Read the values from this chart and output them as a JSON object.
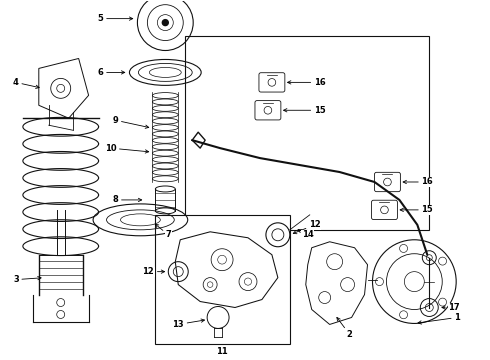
{
  "bg_color": "#ffffff",
  "line_color": "#111111",
  "fig_width": 4.9,
  "fig_height": 3.6,
  "dpi": 100,
  "font_size": 6.0,
  "lw": 0.7
}
